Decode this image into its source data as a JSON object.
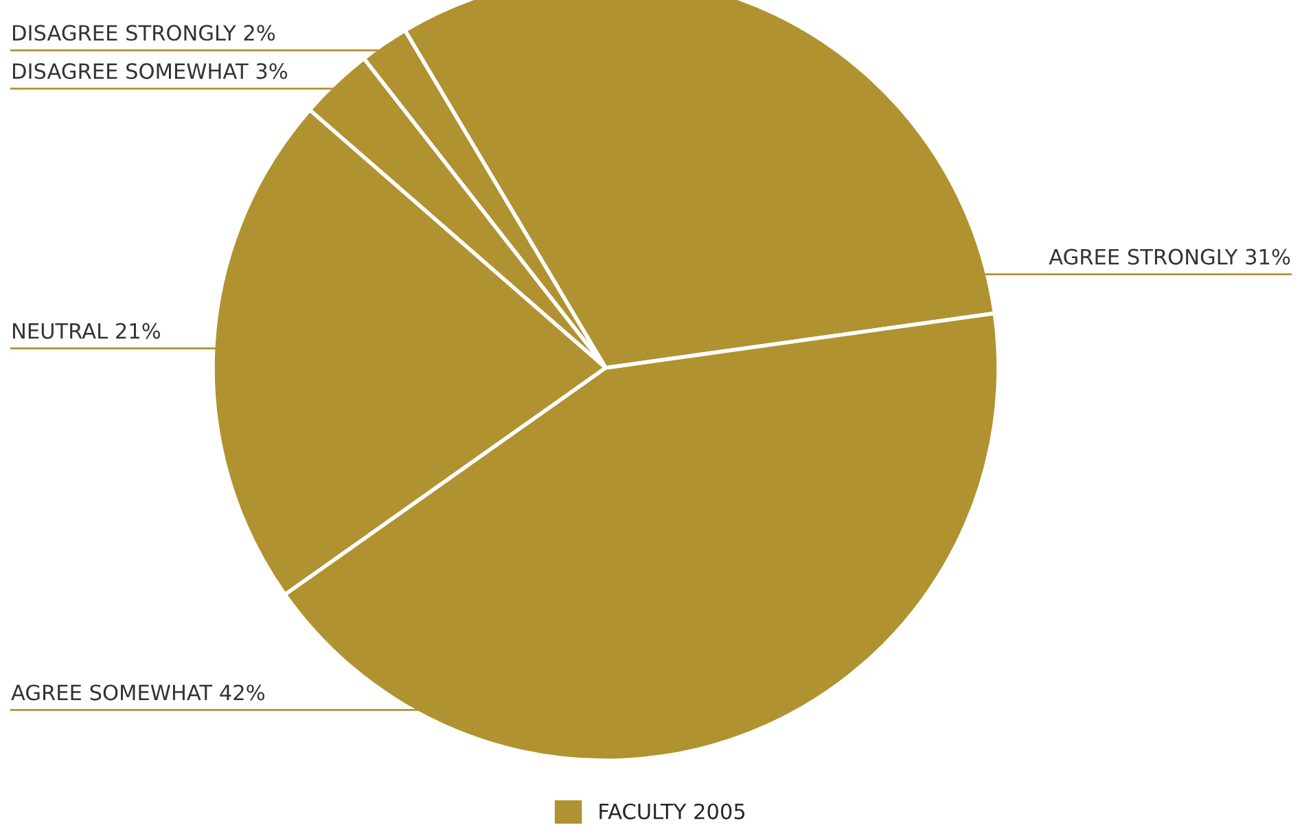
{
  "chart_data": {
    "type": "pie",
    "categories": [
      "AGREE STRONGLY",
      "DISAGREE STRONGLY",
      "DISAGREE SOMEWHAT",
      "NEUTRAL",
      "AGREE SOMEWHAT"
    ],
    "series": [
      {
        "name": "FACULTY 2005",
        "color": "#b09230",
        "values": [
          31,
          2,
          3,
          21,
          42
        ],
        "value_labels": [
          "31%",
          "2%",
          "3%",
          "21%",
          "42%"
        ]
      }
    ],
    "legend": "bottom"
  }
}
